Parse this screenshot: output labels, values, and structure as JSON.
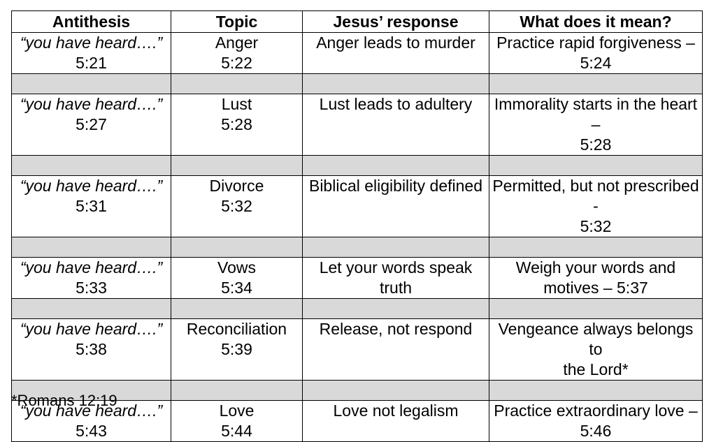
{
  "headers": [
    "Antithesis",
    "Topic",
    "Jesus’ response",
    "What does it mean?"
  ],
  "rows": [
    {
      "antithesis": {
        "quote": "“you have heard….”",
        "ref": "5:21"
      },
      "topic": {
        "name": "Anger",
        "ref": "5:22"
      },
      "response": [
        "Anger leads to murder"
      ],
      "meaning": [
        "Practice rapid forgiveness –",
        "5:24"
      ]
    },
    {
      "antithesis": {
        "quote": "“you have heard….”",
        "ref": "5:27"
      },
      "topic": {
        "name": "Lust",
        "ref": "5:28"
      },
      "response": [
        "Lust leads to adultery"
      ],
      "meaning": [
        "Immorality starts in the heart –",
        "5:28"
      ]
    },
    {
      "antithesis": {
        "quote": "“you have heard….”",
        "ref": "5:31"
      },
      "topic": {
        "name": "Divorce",
        "ref": "5:32"
      },
      "response": [
        "Biblical eligibility defined"
      ],
      "meaning": [
        "Permitted, but not prescribed -",
        "5:32"
      ]
    },
    {
      "antithesis": {
        "quote": "“you have heard….”",
        "ref": "5:33"
      },
      "topic": {
        "name": "Vows",
        "ref": "5:34"
      },
      "response": [
        "Let your words speak",
        "truth"
      ],
      "meaning": [
        "Weigh your words and",
        "motives – 5:37"
      ]
    },
    {
      "antithesis": {
        "quote": "“you have heard….”",
        "ref": "5:38"
      },
      "topic": {
        "name": "Reconciliation",
        "ref": "5:39"
      },
      "response": [
        "Release, not respond"
      ],
      "meaning": [
        "Vengeance always belongs to",
        "the Lord*"
      ]
    },
    {
      "antithesis": {
        "quote": "“you have heard….”",
        "ref": "5:43"
      },
      "topic": {
        "name": "Love",
        "ref": "5:44"
      },
      "response": [
        "Love not legalism"
      ],
      "meaning": [
        "Practice extraordinary love –",
        "5:46"
      ]
    }
  ],
  "footnote": "*Romans 12:19",
  "colors": {
    "spacer_row": "#d9d9d9",
    "border": "#000000"
  }
}
